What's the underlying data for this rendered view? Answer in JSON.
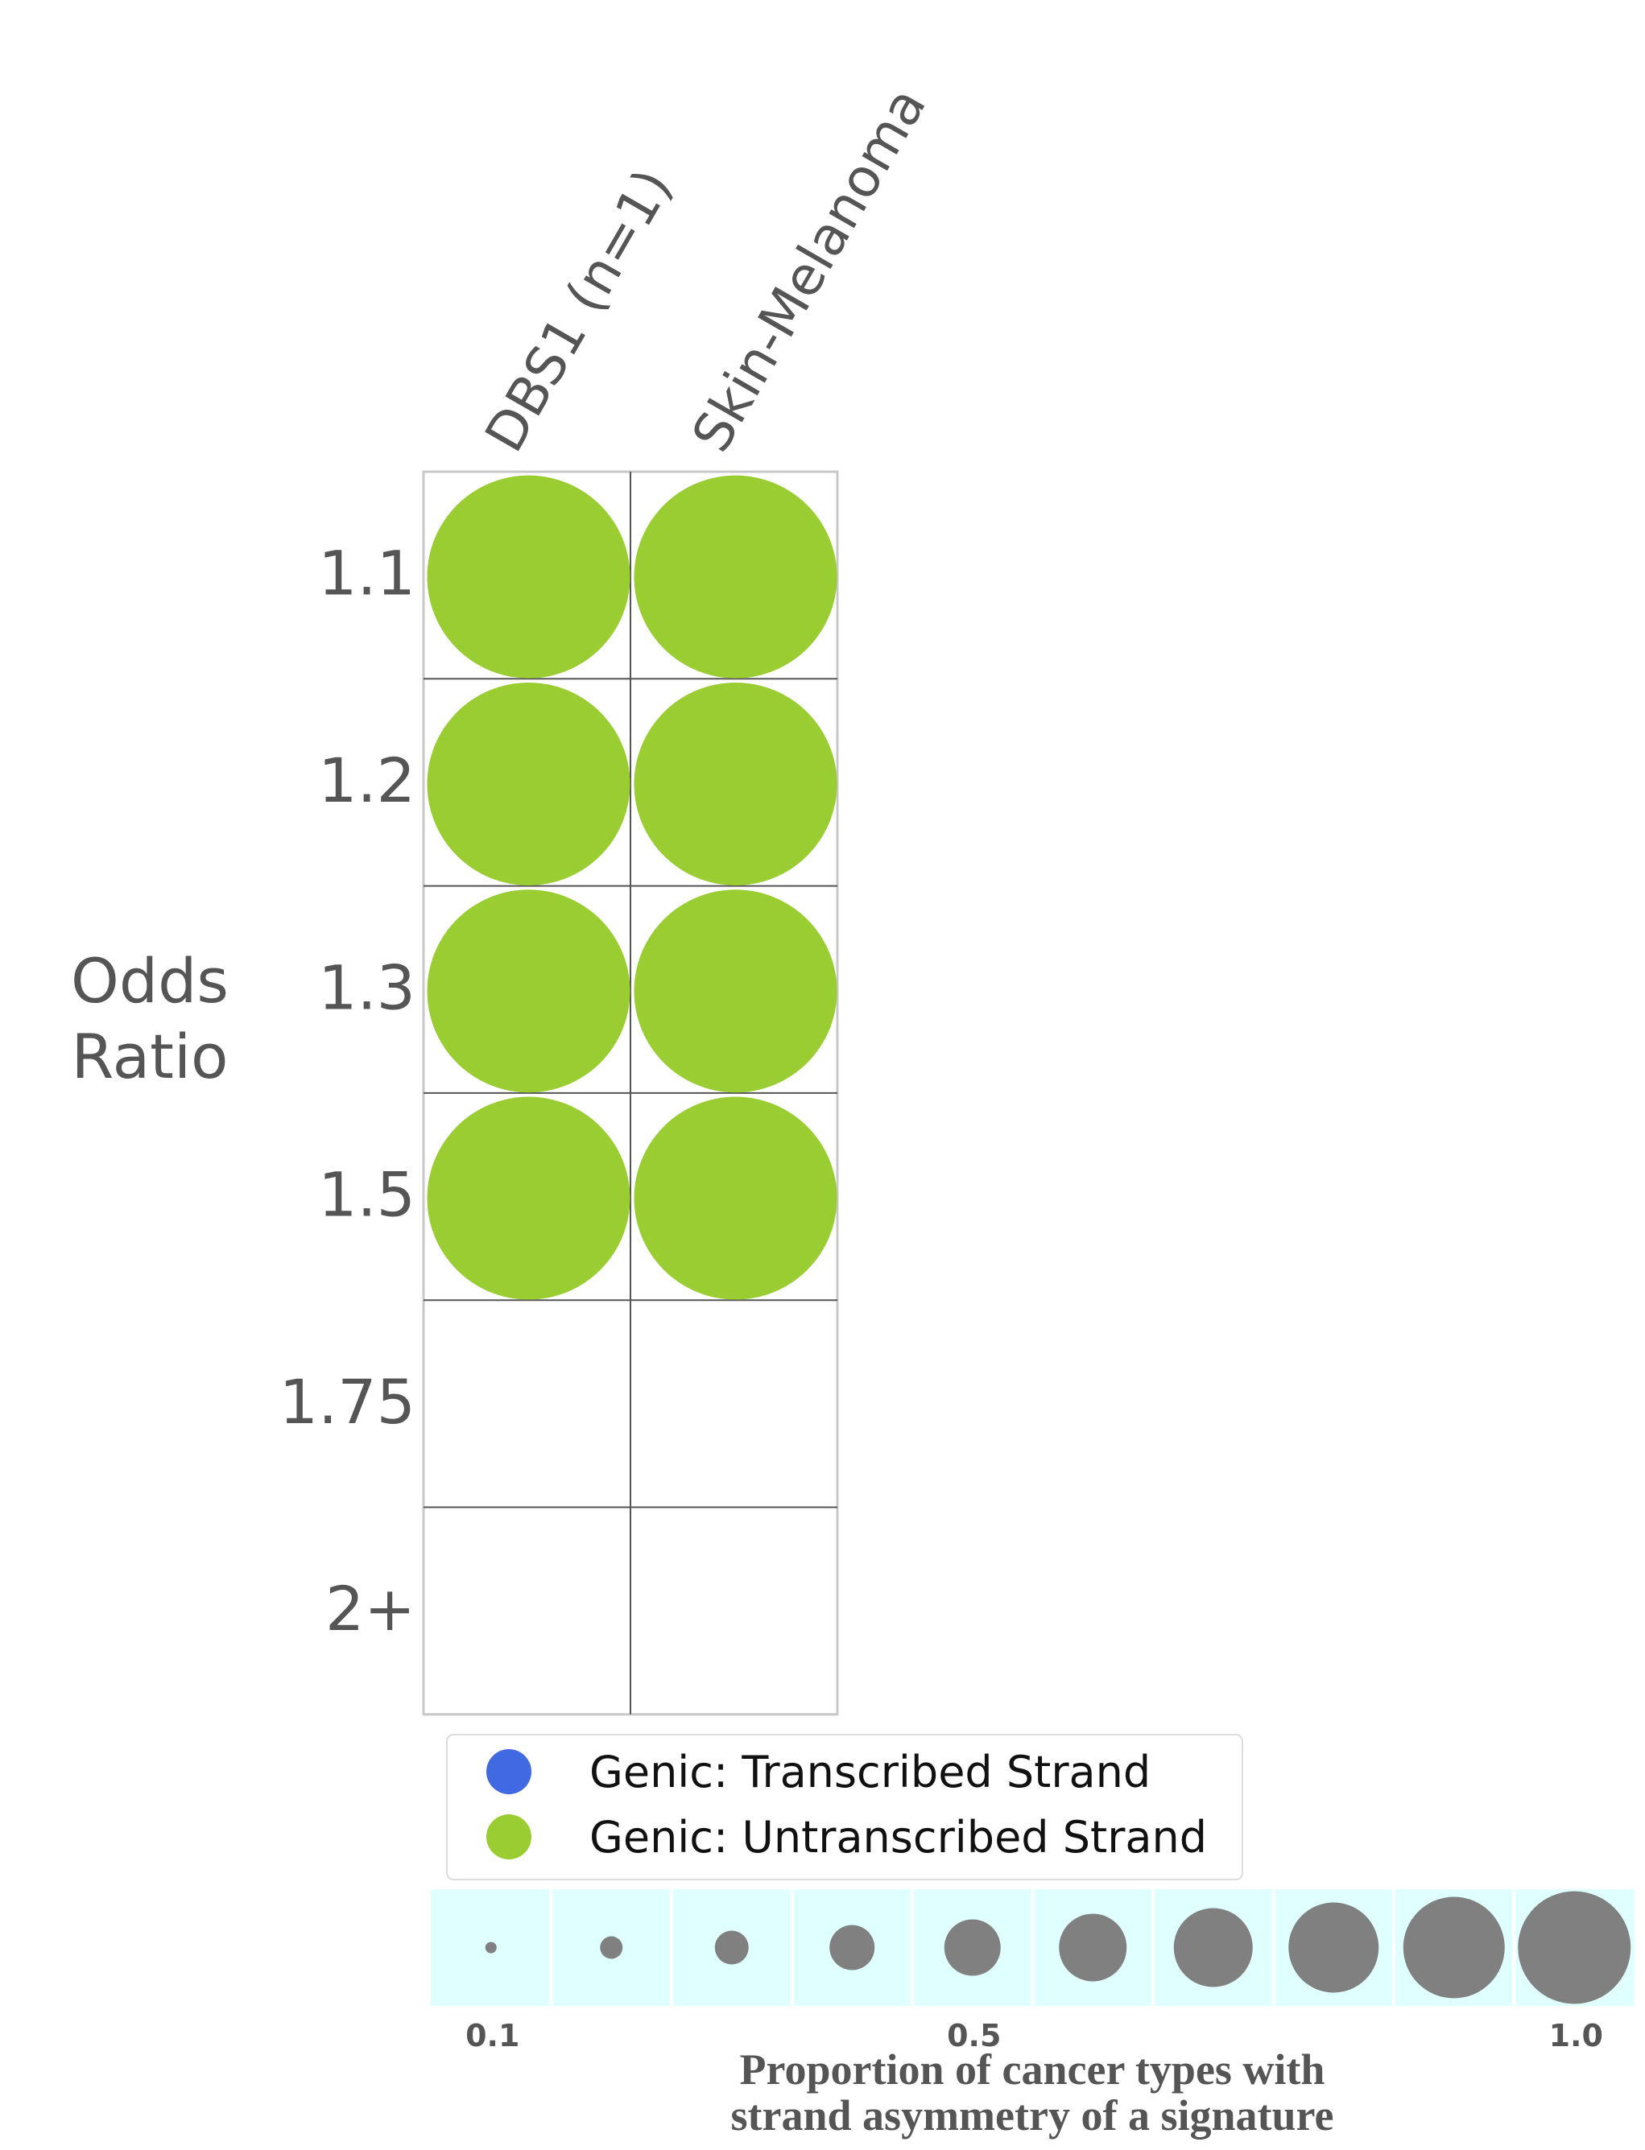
{
  "chart_data": {
    "type": "bubble-grid",
    "columns": [
      "DBS1 (n=1)",
      "Skin-Melanoma"
    ],
    "rows": [
      "1.1",
      "1.2",
      "1.3",
      "1.5",
      "1.75",
      "2+"
    ],
    "ylabel_lines": [
      "Odds",
      "Ratio"
    ],
    "cells": [
      {
        "column": "DBS1 (n=1)",
        "row": "1.1",
        "strand": "untranscribed",
        "proportion": 1.0
      },
      {
        "column": "Skin-Melanoma",
        "row": "1.1",
        "strand": "untranscribed",
        "proportion": 1.0
      },
      {
        "column": "DBS1 (n=1)",
        "row": "1.2",
        "strand": "untranscribed",
        "proportion": 1.0
      },
      {
        "column": "Skin-Melanoma",
        "row": "1.2",
        "strand": "untranscribed",
        "proportion": 1.0
      },
      {
        "column": "DBS1 (n=1)",
        "row": "1.3",
        "strand": "untranscribed",
        "proportion": 1.0
      },
      {
        "column": "Skin-Melanoma",
        "row": "1.3",
        "strand": "untranscribed",
        "proportion": 1.0
      },
      {
        "column": "DBS1 (n=1)",
        "row": "1.5",
        "strand": "untranscribed",
        "proportion": 1.0
      },
      {
        "column": "Skin-Melanoma",
        "row": "1.5",
        "strand": "untranscribed",
        "proportion": 1.0
      }
    ],
    "legend": [
      {
        "key": "transcribed",
        "label": "Genic: Transcribed Strand",
        "color": "#4169e1"
      },
      {
        "key": "untranscribed",
        "label": "Genic: Untranscribed Strand",
        "color": "#9acd32"
      }
    ],
    "size_scale": {
      "values": [
        0.1,
        0.2,
        0.3,
        0.4,
        0.5,
        0.6,
        0.7,
        0.8,
        0.9,
        1.0
      ],
      "tick_labels": [
        {
          "value": 0.1,
          "label": "0.1"
        },
        {
          "value": 0.5,
          "label": "0.5"
        },
        {
          "value": 1.0,
          "label": "1.0"
        }
      ],
      "title_lines": [
        "Proportion of cancer types with",
        "strand asymmetry of a signature"
      ],
      "background_color": "#e0ffff",
      "marker_color": "#808080"
    },
    "grid": true
  }
}
